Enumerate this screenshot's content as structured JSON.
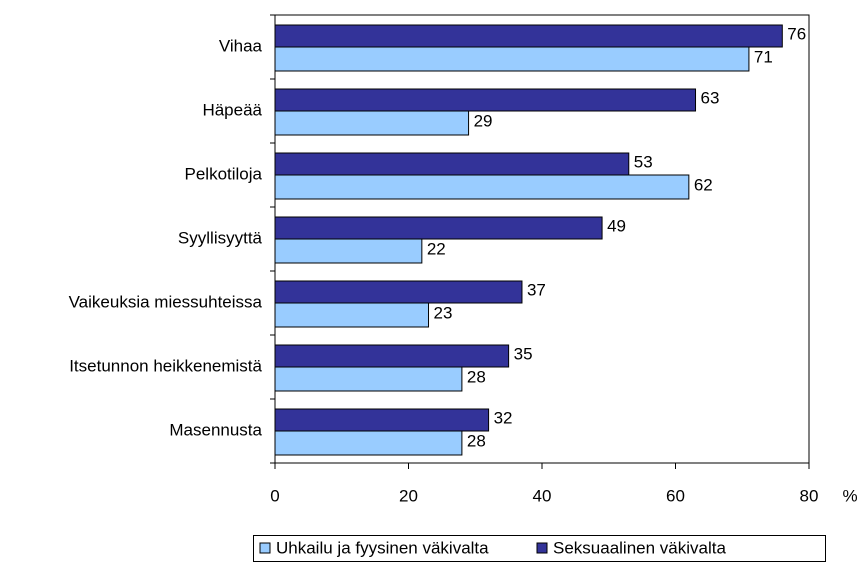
{
  "chart_data": {
    "type": "bar",
    "orientation": "horizontal",
    "categories": [
      "Vihaa",
      "Häpeää",
      "Pelkotiloja",
      "Syyllisyyttä",
      "Vaikeuksia miessuhteissa",
      "Itsetunnon heikkenemistä",
      "Masennusta"
    ],
    "series": [
      {
        "name": "Uhkailu ja fyysinen väkivalta",
        "color": "#99ccff",
        "values": [
          71,
          29,
          62,
          22,
          23,
          28,
          28
        ]
      },
      {
        "name": "Seksuaalinen väkivalta",
        "color": "#333399",
        "values": [
          76,
          63,
          53,
          49,
          37,
          35,
          32
        ]
      }
    ],
    "xlabel": "%",
    "xlim": [
      0,
      80
    ],
    "xticks": [
      0,
      20,
      40,
      60,
      80
    ],
    "legend": "bottom"
  }
}
